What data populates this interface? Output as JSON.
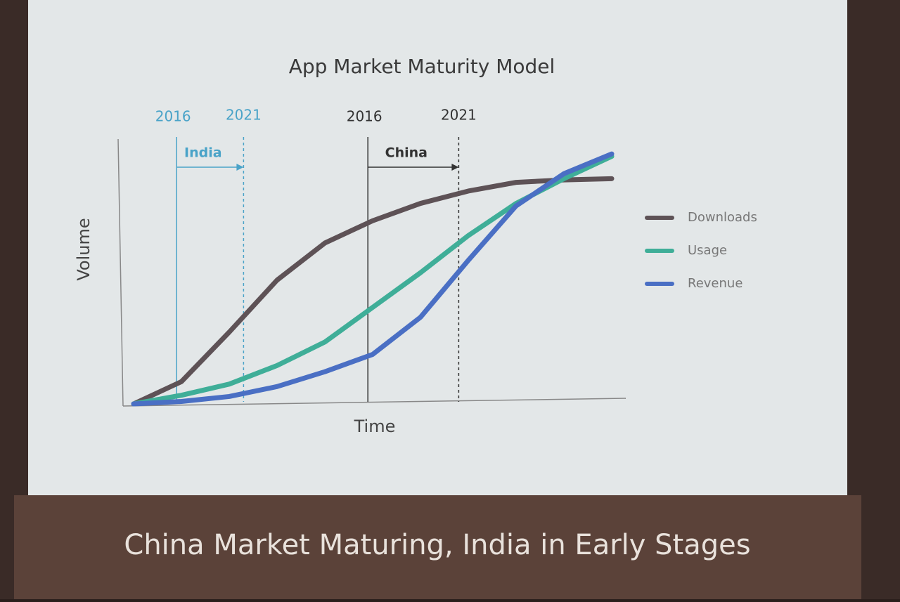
{
  "chart_data": {
    "type": "line",
    "title": "App Market Maturity Model",
    "x_label": "Time",
    "y_label": "Volume",
    "x": [
      0,
      1,
      2,
      3,
      4,
      5,
      6,
      7,
      8,
      9,
      10
    ],
    "xlim": [
      0,
      10
    ],
    "ylim": [
      0,
      10.5
    ],
    "series": [
      {
        "name": "Downloads",
        "color": "#5e5256",
        "values": [
          0,
          0.9,
          2.9,
          5.0,
          6.5,
          7.4,
          8.1,
          8.6,
          8.95,
          9.05,
          9.1
        ]
      },
      {
        "name": "Usage",
        "color": "#3fae98",
        "values": [
          0,
          0.35,
          0.8,
          1.55,
          2.5,
          3.9,
          5.3,
          6.8,
          8.1,
          9.1,
          10
        ]
      },
      {
        "name": "Revenue",
        "color": "#4a6fc4",
        "values": [
          0,
          0.1,
          0.3,
          0.7,
          1.3,
          2.0,
          3.5,
          5.8,
          8.0,
          9.3,
          10.1
        ]
      }
    ],
    "periods": [
      {
        "label": "India",
        "color": "#4aa3c8",
        "start": {
          "value": 0.9,
          "label": "2016"
        },
        "end": {
          "value": 2.3,
          "label": "2021"
        }
      },
      {
        "label": "China",
        "color": "#333333",
        "start": {
          "value": 4.9,
          "label": "2016"
        },
        "end": {
          "value": 6.8,
          "label": "2021"
        }
      }
    ],
    "footer": "China Market Maturing, India in Early Stages"
  }
}
